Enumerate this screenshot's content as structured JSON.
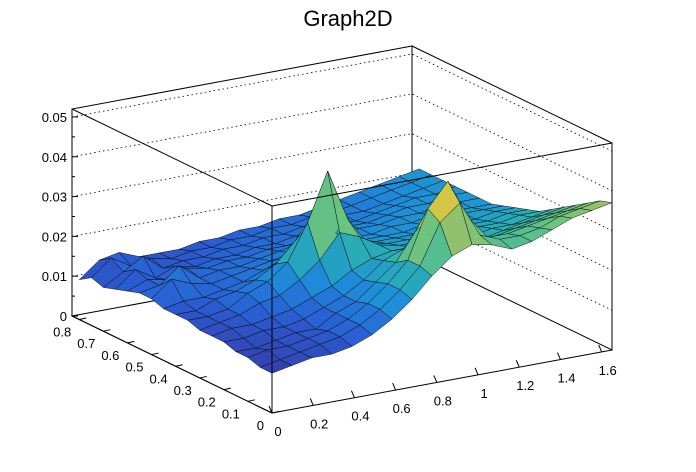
{
  "chart_data": {
    "type": "surface",
    "title": "Graph2D",
    "xlabel": "",
    "ylabel": "",
    "zlabel": "",
    "xlim": [
      0,
      1.65
    ],
    "ylim": [
      0,
      0.83
    ],
    "zlim": [
      0,
      0.052
    ],
    "x_ticks": [
      "0",
      "0.2",
      "0.4",
      "0.6",
      "0.8",
      "1",
      "1.2",
      "1.4",
      "1.6"
    ],
    "y_ticks": [
      "0",
      "0.1",
      "0.2",
      "0.3",
      "0.4",
      "0.5",
      "0.6",
      "0.7",
      "0.8"
    ],
    "z_ticks": [
      "0",
      "0.01",
      "0.02",
      "0.03",
      "0.04",
      "0.05"
    ],
    "grid": true,
    "colormap": [
      "#3a2d9a",
      "#2a5fd3",
      "#1e8fd8",
      "#2bb2b0",
      "#6cc37f",
      "#c5be52",
      "#f6d92b"
    ],
    "peaks": [
      {
        "x": 0.95,
        "y": 0.08,
        "z": 0.046
      },
      {
        "x": 0.65,
        "y": 0.35,
        "z": 0.044
      }
    ],
    "surface_rows": [
      {
        "y": 0.0,
        "z": [
          0.01,
          0.011,
          0.012,
          0.012,
          0.013,
          0.015,
          0.018,
          0.022,
          0.027,
          0.031,
          0.033,
          0.032,
          0.03,
          0.031,
          0.033,
          0.035,
          0.036,
          0.037
        ]
      },
      {
        "y": 0.05,
        "z": [
          0.01,
          0.011,
          0.012,
          0.013,
          0.014,
          0.016,
          0.019,
          0.023,
          0.028,
          0.038,
          0.042,
          0.033,
          0.031,
          0.031,
          0.032,
          0.034,
          0.035,
          0.036
        ]
      },
      {
        "y": 0.1,
        "z": [
          0.011,
          0.012,
          0.012,
          0.013,
          0.014,
          0.016,
          0.019,
          0.023,
          0.028,
          0.04,
          0.046,
          0.036,
          0.03,
          0.03,
          0.031,
          0.032,
          0.033,
          0.034
        ]
      },
      {
        "y": 0.15,
        "z": [
          0.011,
          0.011,
          0.012,
          0.013,
          0.013,
          0.016,
          0.018,
          0.022,
          0.026,
          0.033,
          0.036,
          0.031,
          0.028,
          0.028,
          0.029,
          0.03,
          0.031,
          0.032
        ]
      },
      {
        "y": 0.2,
        "z": [
          0.012,
          0.012,
          0.013,
          0.013,
          0.014,
          0.016,
          0.018,
          0.021,
          0.025,
          0.027,
          0.028,
          0.027,
          0.026,
          0.026,
          0.027,
          0.028,
          0.029,
          0.03
        ]
      },
      {
        "y": 0.25,
        "z": [
          0.012,
          0.013,
          0.013,
          0.014,
          0.015,
          0.017,
          0.019,
          0.022,
          0.024,
          0.025,
          0.025,
          0.025,
          0.025,
          0.025,
          0.026,
          0.026,
          0.027,
          0.028
        ]
      },
      {
        "y": 0.3,
        "z": [
          0.012,
          0.013,
          0.014,
          0.016,
          0.017,
          0.02,
          0.024,
          0.03,
          0.028,
          0.025,
          0.024,
          0.024,
          0.024,
          0.024,
          0.025,
          0.025,
          0.026,
          0.026
        ]
      },
      {
        "y": 0.35,
        "z": [
          0.013,
          0.013,
          0.014,
          0.017,
          0.019,
          0.023,
          0.032,
          0.044,
          0.031,
          0.024,
          0.023,
          0.023,
          0.023,
          0.023,
          0.024,
          0.024,
          0.025,
          0.025
        ]
      },
      {
        "y": 0.4,
        "z": [
          0.013,
          0.013,
          0.015,
          0.016,
          0.018,
          0.021,
          0.026,
          0.031,
          0.026,
          0.022,
          0.022,
          0.022,
          0.022,
          0.022,
          0.023,
          0.023,
          0.024,
          0.024
        ]
      },
      {
        "y": 0.45,
        "z": [
          0.013,
          0.014,
          0.014,
          0.015,
          0.016,
          0.018,
          0.02,
          0.021,
          0.021,
          0.021,
          0.021,
          0.021,
          0.021,
          0.022,
          0.022,
          0.023,
          0.023,
          0.023
        ]
      },
      {
        "y": 0.5,
        "z": [
          0.014,
          0.018,
          0.016,
          0.015,
          0.016,
          0.017,
          0.018,
          0.019,
          0.02,
          0.02,
          0.02,
          0.02,
          0.021,
          0.021,
          0.022,
          0.022,
          0.022,
          0.022
        ]
      },
      {
        "y": 0.55,
        "z": [
          0.014,
          0.015,
          0.019,
          0.015,
          0.016,
          0.016,
          0.017,
          0.018,
          0.019,
          0.019,
          0.019,
          0.02,
          0.02,
          0.021,
          0.021,
          0.022,
          0.022,
          0.022
        ]
      },
      {
        "y": 0.6,
        "z": [
          0.013,
          0.015,
          0.014,
          0.016,
          0.015,
          0.016,
          0.016,
          0.017,
          0.017,
          0.018,
          0.018,
          0.019,
          0.019,
          0.02,
          0.021,
          0.021,
          0.022,
          0.022
        ]
      },
      {
        "y": 0.65,
        "z": [
          0.012,
          0.016,
          0.013,
          0.015,
          0.014,
          0.015,
          0.015,
          0.016,
          0.016,
          0.017,
          0.017,
          0.018,
          0.018,
          0.019,
          0.02,
          0.021,
          0.021,
          0.022
        ]
      },
      {
        "y": 0.7,
        "z": [
          0.011,
          0.014,
          0.017,
          0.013,
          0.014,
          0.014,
          0.015,
          0.015,
          0.016,
          0.016,
          0.017,
          0.017,
          0.018,
          0.018,
          0.019,
          0.02,
          0.021,
          0.022
        ]
      },
      {
        "y": 0.75,
        "z": [
          0.012,
          0.016,
          0.013,
          0.014,
          0.013,
          0.014,
          0.014,
          0.015,
          0.015,
          0.016,
          0.016,
          0.017,
          0.017,
          0.018,
          0.019,
          0.02,
          0.021,
          0.022
        ]
      },
      {
        "y": 0.8,
        "z": [
          0.01,
          0.014,
          0.015,
          0.013,
          0.013,
          0.013,
          0.014,
          0.014,
          0.015,
          0.015,
          0.016,
          0.016,
          0.017,
          0.018,
          0.019,
          0.02,
          0.021,
          0.022
        ]
      }
    ]
  }
}
